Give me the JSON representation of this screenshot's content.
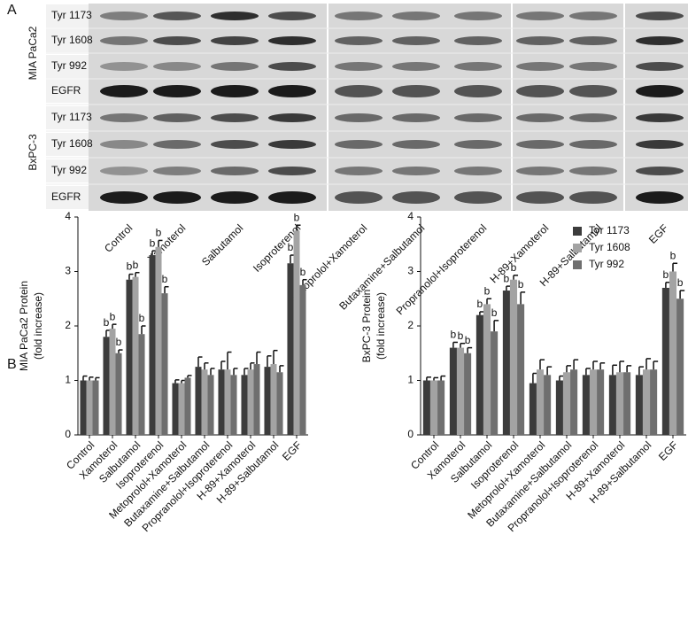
{
  "panels": {
    "a": "A",
    "b": "B"
  },
  "blot": {
    "cell_lines": [
      "MIA PaCa2",
      "BxPC-3"
    ],
    "rows": [
      "Tyr 1173",
      "Tyr 1608",
      "Tyr 992",
      "EGFR"
    ],
    "lanes": [
      "Control",
      "Xamoterol",
      "Salbutamol",
      "Isoproterenol",
      "Metoprolol+Xamoterol",
      "Butaxamine+Salbutamol",
      "Propranolol+Isoproterenol",
      "H-89+Xamoterol",
      "H-89+Salbutamol",
      "EGF"
    ]
  },
  "chart_data": [
    {
      "type": "bar",
      "ylabel": [
        "MIA PaCa2 Protein",
        "(fold increase)"
      ],
      "categories": [
        "Control",
        "Xamoterol",
        "Salbutamol",
        "Isoproterenol",
        "Metoprolol+Xamoterol",
        "Butaxamine+Salbutamol",
        "Propranolol+Isoproterenol",
        "H-89+Xamoterol",
        "H-89+Salbutamol",
        "EGF"
      ],
      "series": [
        {
          "name": "Tyr 1173",
          "color": "#3c3c3c",
          "values": [
            1.0,
            1.8,
            2.85,
            3.3,
            0.95,
            1.25,
            1.2,
            1.1,
            1.25,
            3.15
          ],
          "errors": [
            0.08,
            0.12,
            0.1,
            0.08,
            0.06,
            0.18,
            0.15,
            0.12,
            0.2,
            0.15
          ],
          "labels": [
            null,
            "b",
            "b",
            "b",
            null,
            null,
            null,
            null,
            null,
            "b"
          ]
        },
        {
          "name": "Tyr 1608",
          "color": "#a3a3a3",
          "values": [
            1.0,
            1.95,
            2.9,
            3.45,
            0.95,
            1.2,
            1.2,
            1.2,
            1.3,
            3.75
          ],
          "errors": [
            0.06,
            0.08,
            0.08,
            0.12,
            0.05,
            0.12,
            0.32,
            0.12,
            0.25,
            0.1
          ],
          "labels": [
            null,
            "b",
            "b",
            "b",
            null,
            null,
            null,
            null,
            null,
            "b"
          ]
        },
        {
          "name": "Tyr 992",
          "color": "#6f6f6f",
          "values": [
            1.0,
            1.5,
            1.85,
            2.6,
            1.05,
            1.1,
            1.1,
            1.3,
            1.15,
            2.75
          ],
          "errors": [
            0.05,
            0.06,
            0.15,
            0.12,
            0.04,
            0.12,
            0.12,
            0.22,
            0.12,
            0.1
          ],
          "labels": [
            null,
            "b",
            "b",
            "b",
            null,
            null,
            null,
            null,
            null,
            "b"
          ]
        }
      ],
      "ylim": [
        0,
        4
      ],
      "yticks": [
        0,
        1,
        2,
        3,
        4
      ]
    },
    {
      "type": "bar",
      "ylabel": [
        "BxPC-3  Protein",
        "(fold increase)"
      ],
      "categories": [
        "Control",
        "Xamoterol",
        "Salbutamol",
        "Isoproterenol",
        "Metoprolol+Xamoterol",
        "Butaxamine+Salbutamol",
        "Propranolol+Isoproterenol",
        "H-89+Xamoterol",
        "H-89+Salbutamol",
        "EGF"
      ],
      "series": [
        {
          "name": "Tyr 1173",
          "color": "#3c3c3c",
          "values": [
            1.0,
            1.6,
            2.2,
            2.65,
            0.95,
            1.0,
            1.1,
            1.1,
            1.1,
            2.7
          ],
          "errors": [
            0.06,
            0.1,
            0.06,
            0.08,
            0.18,
            0.08,
            0.12,
            0.18,
            0.15,
            0.1
          ],
          "labels": [
            null,
            "b",
            "b",
            "b",
            null,
            null,
            null,
            null,
            null,
            "b"
          ]
        },
        {
          "name": "Tyr 1608",
          "color": "#a3a3a3",
          "values": [
            1.0,
            1.6,
            2.4,
            2.85,
            1.2,
            1.15,
            1.2,
            1.15,
            1.2,
            3.0
          ],
          "errors": [
            0.05,
            0.08,
            0.1,
            0.08,
            0.18,
            0.12,
            0.15,
            0.2,
            0.2,
            0.15
          ],
          "labels": [
            null,
            "b",
            "b",
            "b",
            null,
            null,
            null,
            null,
            null,
            "b"
          ]
        },
        {
          "name": "Tyr 992",
          "color": "#6f6f6f",
          "values": [
            1.0,
            1.5,
            1.9,
            2.4,
            1.1,
            1.2,
            1.2,
            1.15,
            1.2,
            2.5
          ],
          "errors": [
            0.08,
            0.1,
            0.2,
            0.22,
            0.15,
            0.18,
            0.12,
            0.12,
            0.15,
            0.15
          ],
          "labels": [
            null,
            "b",
            "b",
            "b",
            null,
            null,
            null,
            null,
            null,
            "b"
          ]
        }
      ],
      "ylim": [
        0,
        4
      ],
      "yticks": [
        0,
        1,
        2,
        3,
        4
      ],
      "legend": "upper right"
    }
  ]
}
